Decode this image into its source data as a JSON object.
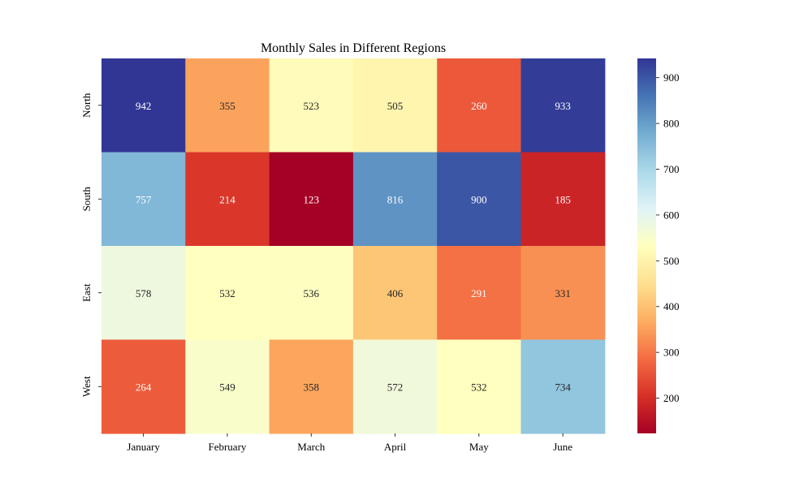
{
  "chart_data": {
    "type": "heatmap",
    "title": "Monthly Sales in Different Regions",
    "xlabel": "",
    "ylabel": "",
    "x_categories": [
      "January",
      "February",
      "March",
      "April",
      "May",
      "June"
    ],
    "y_categories": [
      "North",
      "South",
      "East",
      "West"
    ],
    "values": [
      [
        942,
        355,
        523,
        505,
        260,
        933
      ],
      [
        757,
        214,
        123,
        816,
        900,
        185
      ],
      [
        578,
        532,
        536,
        406,
        291,
        331
      ],
      [
        264,
        549,
        358,
        572,
        532,
        734
      ]
    ],
    "colormap": "RdYlBu",
    "colorbar": {
      "min": 123,
      "max": 942,
      "ticks": [
        200,
        300,
        400,
        500,
        600,
        700,
        800,
        900
      ]
    },
    "annotations": true,
    "grid": false,
    "legend": "colorbar-right"
  }
}
